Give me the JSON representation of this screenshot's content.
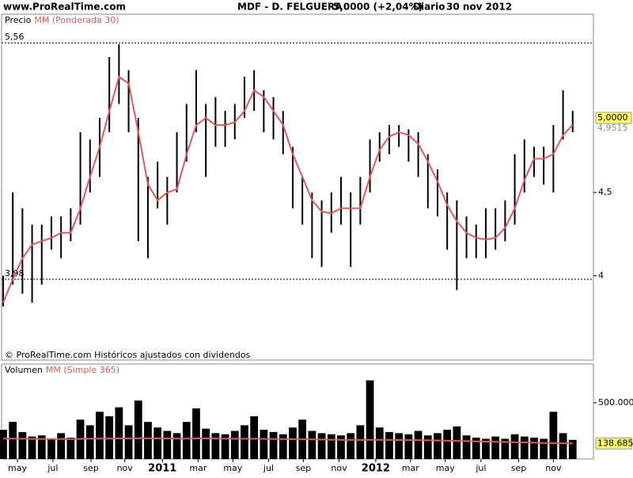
{
  "header": {
    "site": "www.ProRealTime.com",
    "symbol": "MDF - D. FELGUERA",
    "quote": "5,0000 (+2,04%)",
    "period": "Diario",
    "date": "30 nov 2012"
  },
  "chart_data": [
    {
      "type": "range",
      "title": "Precio",
      "log_scale": true,
      "note": "© ProRealTime.com Históricos ajustados con dividendos",
      "x": [
        0,
        1,
        2,
        3,
        4,
        5,
        6,
        7,
        8,
        9,
        10,
        11,
        12,
        13,
        14,
        15,
        16,
        17,
        18,
        19,
        20,
        21,
        22,
        23,
        24,
        25,
        26,
        27,
        28,
        29,
        30,
        31,
        32,
        33,
        34,
        35,
        36,
        37,
        38,
        39,
        40,
        41,
        42,
        43,
        44,
        45,
        46,
        47,
        48,
        49,
        50,
        51,
        52,
        53,
        54,
        55,
        56,
        57,
        58,
        59
      ],
      "xlim": [
        -0.16,
        61.15
      ],
      "ylim": [
        3.55,
        5.79
      ],
      "yticks": [
        4,
        {
          "value": 4.5,
          "label": "4,5"
        }
      ],
      "reference_lines": [
        {
          "value": 5.56,
          "label": "5,56"
        },
        {
          "value": 3.98,
          "label": "3,98"
        }
      ],
      "series": [
        {
          "color": "#000000",
          "high": [
            4.0,
            4.5,
            4.4,
            4.3,
            4.3,
            4.35,
            4.35,
            4.4,
            4.9,
            4.85,
            5.0,
            5.45,
            5.55,
            5.35,
            5.0,
            4.6,
            4.7,
            4.6,
            4.9,
            5.1,
            5.35,
            5.1,
            5.15,
            5.05,
            5.1,
            5.3,
            5.35,
            5.2,
            5.15,
            5.05,
            4.8,
            4.6,
            4.5,
            4.45,
            4.5,
            4.6,
            4.5,
            4.6,
            4.85,
            4.9,
            4.95,
            4.95,
            4.92,
            4.9,
            4.75,
            4.65,
            4.5,
            4.45,
            4.35,
            4.3,
            4.4,
            4.4,
            4.45,
            4.75,
            4.85,
            4.8,
            4.8,
            4.95,
            5.2,
            5.05
          ],
          "low": [
            3.83,
            3.95,
            3.9,
            3.85,
            3.95,
            4.15,
            4.1,
            4.2,
            4.3,
            4.5,
            4.6,
            4.9,
            5.1,
            4.9,
            4.2,
            4.1,
            4.4,
            4.3,
            4.5,
            4.7,
            4.9,
            4.6,
            4.8,
            4.8,
            4.85,
            5.0,
            5.05,
            4.9,
            4.85,
            4.75,
            4.4,
            4.3,
            4.1,
            4.05,
            4.25,
            4.3,
            4.05,
            4.3,
            4.5,
            4.7,
            4.75,
            4.8,
            4.7,
            4.6,
            4.4,
            4.35,
            4.15,
            3.92,
            4.1,
            4.1,
            4.1,
            4.15,
            4.2,
            4.3,
            4.5,
            4.6,
            4.55,
            4.5,
            4.85,
            4.9
          ],
          "last": {
            "value": 5.0,
            "label": "5,0000"
          }
        },
        {
          "name": "MM (Ponderada 30)",
          "type": "line",
          "color": "#e05a5a",
          "values": [
            3.85,
            3.98,
            4.1,
            4.18,
            4.2,
            4.22,
            4.25,
            4.25,
            4.4,
            4.6,
            4.8,
            5.05,
            5.3,
            5.25,
            4.9,
            4.55,
            4.45,
            4.5,
            4.52,
            4.75,
            4.95,
            5.0,
            4.95,
            4.95,
            4.97,
            5.05,
            5.2,
            5.15,
            5.05,
            4.95,
            4.75,
            4.6,
            4.45,
            4.38,
            4.37,
            4.4,
            4.4,
            4.4,
            4.6,
            4.78,
            4.87,
            4.9,
            4.88,
            4.82,
            4.7,
            4.57,
            4.42,
            4.32,
            4.25,
            4.22,
            4.21,
            4.22,
            4.28,
            4.4,
            4.58,
            4.72,
            4.72,
            4.75,
            4.88,
            4.9515
          ],
          "last": {
            "value": 4.9515,
            "label": "4,9515"
          }
        }
      ]
    },
    {
      "type": "bar",
      "title": "Volumen",
      "x": [
        0,
        1,
        2,
        3,
        4,
        5,
        6,
        7,
        8,
        9,
        10,
        11,
        12,
        13,
        14,
        15,
        16,
        17,
        18,
        19,
        20,
        21,
        22,
        23,
        24,
        25,
        26,
        27,
        28,
        29,
        30,
        31,
        32,
        33,
        34,
        35,
        36,
        37,
        38,
        39,
        40,
        41,
        42,
        43,
        44,
        45,
        46,
        47,
        48,
        49,
        50,
        51,
        52,
        53,
        54,
        55,
        56,
        57,
        58,
        59
      ],
      "xlim": [
        -0.16,
        61.15
      ],
      "ylim": [
        0,
        845000
      ],
      "yticks": [
        {
          "value": 500000,
          "label": "500.000"
        }
      ],
      "xticks": [
        {
          "value": 1.48,
          "label": "may"
        },
        {
          "value": 5.16,
          "label": "jul"
        },
        {
          "value": 9.1,
          "label": "sep"
        },
        {
          "value": 12.6,
          "label": "nov"
        },
        {
          "value": 16.5,
          "label": "2011"
        },
        {
          "value": 20.2,
          "label": "mar"
        },
        {
          "value": 23.8,
          "label": "may"
        },
        {
          "value": 27.5,
          "label": "jul"
        },
        {
          "value": 31.1,
          "label": "sep"
        },
        {
          "value": 34.8,
          "label": "nov"
        },
        {
          "value": 38.6,
          "label": "2012"
        },
        {
          "value": 42.2,
          "label": "mar"
        },
        {
          "value": 45.8,
          "label": "may"
        },
        {
          "value": 49.5,
          "label": "jul"
        },
        {
          "value": 53.4,
          "label": "sep"
        },
        {
          "value": 57.0,
          "label": "nov"
        }
      ],
      "series": [
        {
          "color": "#000000",
          "values": [
            260000,
            330000,
            240000,
            200000,
            210000,
            180000,
            230000,
            190000,
            350000,
            300000,
            420000,
            380000,
            460000,
            300000,
            520000,
            330000,
            280000,
            250000,
            230000,
            330000,
            450000,
            270000,
            230000,
            220000,
            250000,
            300000,
            380000,
            260000,
            240000,
            220000,
            280000,
            350000,
            250000,
            230000,
            220000,
            210000,
            230000,
            300000,
            700000,
            280000,
            240000,
            230000,
            220000,
            250000,
            210000,
            230000,
            260000,
            290000,
            210000,
            190000,
            180000,
            200000,
            180000,
            220000,
            200000,
            190000,
            180000,
            420000,
            230000,
            170000
          ]
        },
        {
          "name": "MM (Simple 365)",
          "type": "line",
          "color": "#e05a5a",
          "values": [
            182000,
            181000,
            180000,
            179000,
            179000,
            178000,
            178000,
            178000,
            179000,
            180000,
            181000,
            182000,
            183000,
            183000,
            184000,
            184000,
            183000,
            183000,
            182000,
            182000,
            183000,
            183000,
            182000,
            181000,
            180000,
            180000,
            180000,
            179000,
            178000,
            177000,
            176000,
            175000,
            174000,
            173000,
            172000,
            171000,
            170000,
            170000,
            171000,
            171000,
            170000,
            169000,
            168000,
            167000,
            166000,
            165000,
            163000,
            161000,
            159000,
            157000,
            155000,
            153000,
            151000,
            149000,
            147000,
            145000,
            143000,
            141000,
            140000,
            138685
          ],
          "last": {
            "value": 138685,
            "label": "138.685"
          }
        }
      ]
    }
  ]
}
